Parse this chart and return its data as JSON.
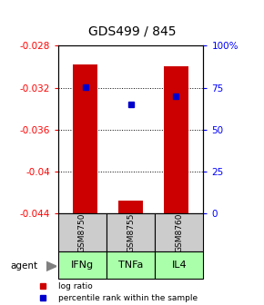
{
  "title": "GDS499 / 845",
  "samples": [
    "GSM8750",
    "GSM8755",
    "GSM8760"
  ],
  "agents": [
    "IFNg",
    "TNFa",
    "IL4"
  ],
  "bar_tops": [
    -0.0298,
    -0.0428,
    -0.03
  ],
  "bar_bottom": -0.044,
  "percentile_values": [
    75.5,
    65.0,
    70.0
  ],
  "ylim_min": -0.044,
  "ylim_max": -0.028,
  "yticks_left": [
    -0.044,
    -0.04,
    -0.036,
    -0.032,
    -0.028
  ],
  "yticks_right": [
    0,
    25,
    50,
    75,
    100
  ],
  "bar_color": "#cc0000",
  "percentile_color": "#0000cc",
  "sample_bg_color": "#cccccc",
  "agent_bg_color": "#aaffaa",
  "grid_color": "#888888",
  "x_positions": [
    0,
    1,
    2
  ]
}
